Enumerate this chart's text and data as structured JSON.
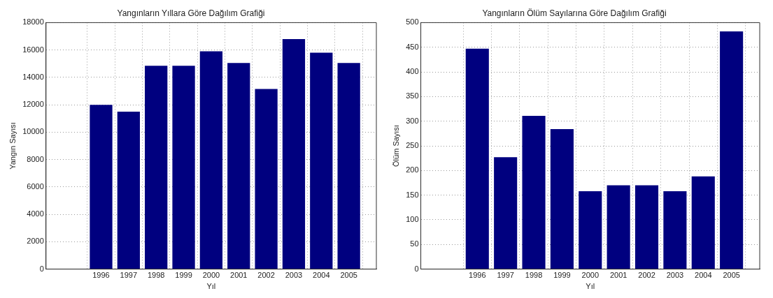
{
  "chart_data": [
    {
      "type": "bar",
      "title": "Yangınların Yıllara Göre Dağılım Grafiği",
      "xlabel": "Yıl",
      "ylabel": "Yangın Sayısı",
      "x": [
        1996,
        1997,
        1998,
        1999,
        2000,
        2001,
        2002,
        2003,
        2004,
        2005
      ],
      "values": [
        12000,
        11500,
        14850,
        14850,
        15900,
        15050,
        13150,
        16800,
        15800,
        15050
      ],
      "color": "#00007f",
      "xlim": [
        1994,
        2006
      ],
      "xticks": [
        1996,
        1997,
        1998,
        1999,
        2000,
        2001,
        2002,
        2003,
        2004,
        2005
      ],
      "ylim": [
        0,
        18000
      ],
      "yticks": [
        0,
        2000,
        4000,
        6000,
        8000,
        10000,
        12000,
        14000,
        16000,
        18000
      ],
      "grid": true,
      "legend": false
    },
    {
      "type": "bar",
      "title": "Yangınların Ölüm Sayılarına Göre Dağılım Grafiği",
      "xlabel": "Yıl",
      "ylabel": "Ölüm Sayısı",
      "x": [
        1996,
        1997,
        1998,
        1999,
        2000,
        2001,
        2002,
        2003,
        2004,
        2005
      ],
      "values": [
        447,
        227,
        311,
        284,
        158,
        170,
        170,
        158,
        188,
        482
      ],
      "color": "#00007f",
      "xlim": [
        1994,
        2006
      ],
      "xticks": [
        1996,
        1997,
        1998,
        1999,
        2000,
        2001,
        2002,
        2003,
        2004,
        2005
      ],
      "ylim": [
        0,
        500
      ],
      "yticks": [
        0,
        50,
        100,
        150,
        200,
        250,
        300,
        350,
        400,
        450,
        500
      ],
      "grid": true,
      "legend": false
    }
  ]
}
